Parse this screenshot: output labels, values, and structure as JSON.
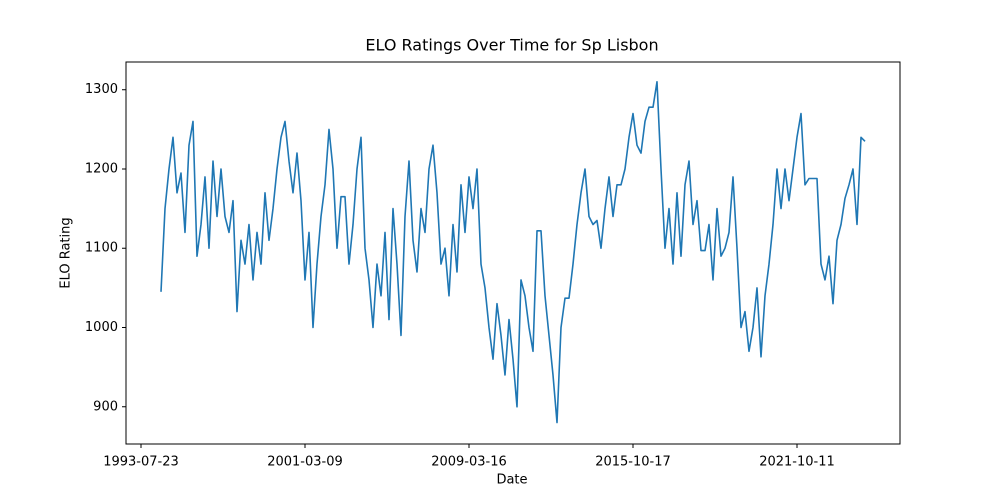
{
  "chart_data": {
    "type": "line",
    "title": "ELO Ratings Over Time for Sp Lisbon",
    "x_label": "Date",
    "y_label": "ELO Rating",
    "categories": [
      "1993-07-23",
      null,
      null,
      null,
      null,
      null,
      null,
      null,
      null,
      null,
      null,
      null,
      null,
      null,
      null,
      null,
      null,
      null,
      null,
      null,
      null,
      null,
      null,
      null,
      null,
      null,
      null,
      null,
      null,
      null,
      null,
      null,
      null,
      null,
      null,
      null,
      null,
      null,
      null,
      null,
      null,
      "2001-03-09",
      null,
      null,
      null,
      null,
      null,
      null,
      null,
      null,
      null,
      null,
      null,
      null,
      null,
      null,
      null,
      null,
      null,
      null,
      null,
      null,
      null,
      null,
      null,
      null,
      null,
      null,
      null,
      null,
      null,
      null,
      null,
      null,
      null,
      null,
      null,
      null,
      null,
      null,
      null,
      null,
      "2009-03-16",
      null,
      null,
      null,
      null,
      null,
      null,
      null,
      null,
      null,
      null,
      null,
      null,
      null,
      null,
      null,
      null,
      null,
      null,
      null,
      null,
      null,
      null,
      null,
      null,
      null,
      null,
      null,
      null,
      null,
      null,
      null,
      null,
      null,
      null,
      null,
      null,
      null,
      null,
      null,
      null,
      "2015-10-17",
      null,
      null,
      null,
      null,
      null,
      null,
      null,
      null,
      null,
      null,
      null,
      null,
      null,
      null,
      null,
      null,
      null,
      null,
      null,
      null,
      null,
      null,
      null,
      null,
      null,
      null,
      null,
      null,
      null,
      null,
      null,
      null,
      null,
      null,
      null,
      null,
      null,
      null,
      null,
      null,
      "2021-10-11",
      null,
      null,
      null,
      null,
      null,
      null,
      null,
      null,
      null,
      null,
      null,
      null,
      null,
      null,
      null,
      null,
      null
    ],
    "series": [
      {
        "name": "Sp Lisbon",
        "color": "#1f77b4",
        "values": [
          null,
          null,
          null,
          null,
          null,
          1045,
          1150,
          1200,
          1240,
          1170,
          1195,
          1120,
          1230,
          1260,
          1090,
          1130,
          1190,
          1100,
          1210,
          1140,
          1200,
          1140,
          1120,
          1160,
          1020,
          1110,
          1080,
          1130,
          1060,
          1120,
          1080,
          1170,
          1110,
          1150,
          1200,
          1240,
          1260,
          1210,
          1170,
          1220,
          1160,
          1060,
          1120,
          1000,
          1080,
          1140,
          1180,
          1250,
          1200,
          1100,
          1165,
          1165,
          1080,
          1130,
          1200,
          1240,
          1100,
          1060,
          1000,
          1080,
          1040,
          1120,
          1010,
          1150,
          1080,
          990,
          1140,
          1210,
          1110,
          1070,
          1150,
          1120,
          1200,
          1230,
          1170,
          1080,
          1100,
          1040,
          1130,
          1070,
          1180,
          1120,
          1190,
          1150,
          1200,
          1080,
          1050,
          1000,
          960,
          1030,
          990,
          940,
          1010,
          960,
          900,
          1060,
          1040,
          1000,
          970,
          1122,
          1122,
          1040,
          990,
          940,
          880,
          1000,
          1037,
          1037,
          1080,
          1130,
          1170,
          1200,
          1140,
          1130,
          1135,
          1100,
          1150,
          1190,
          1140,
          1180,
          1180,
          1200,
          1240,
          1270,
          1230,
          1220,
          1260,
          1278,
          1278,
          1310,
          1200,
          1100,
          1150,
          1080,
          1170,
          1090,
          1180,
          1210,
          1130,
          1160,
          1097,
          1097,
          1130,
          1060,
          1150,
          1090,
          1100,
          1120,
          1190,
          1100,
          1000,
          1020,
          970,
          1000,
          1050,
          963,
          1040,
          1080,
          1130,
          1200,
          1150,
          1200,
          1160,
          1200,
          1240,
          1270,
          1180,
          1188,
          1188,
          1188,
          1080,
          1060,
          1090,
          1030,
          1110,
          1130,
          1163,
          1180,
          1200,
          1130,
          1240,
          1235
        ]
      }
    ],
    "ylim": [
      853,
      1335
    ],
    "yticks": [
      900,
      1000,
      1100,
      1200,
      1300
    ]
  }
}
